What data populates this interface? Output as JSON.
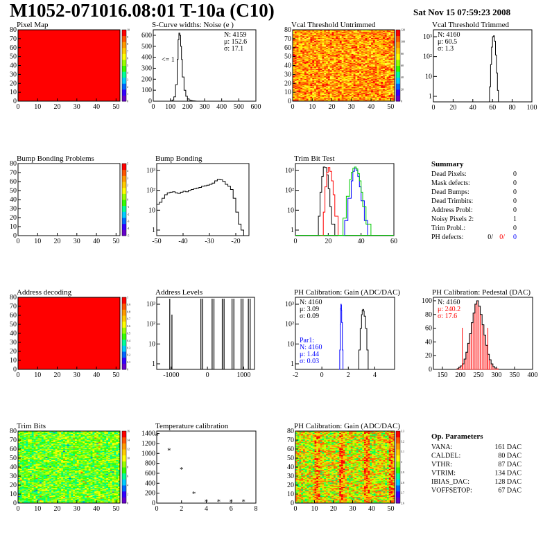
{
  "header": {
    "title": "M1052-071016.08:01 T-10a (C10)",
    "timestamp": "Sat Nov 15 07:59:23 2008"
  },
  "colors": {
    "red": "#ff0000",
    "blue": "#0000ff",
    "green": "#00cc00",
    "hist_fill_red": "#ff0000"
  },
  "chart_data": [
    {
      "id": "pixel-map",
      "type": "heatmap",
      "title": "Pixel Map",
      "x_ticks": [
        "0",
        "10",
        "20",
        "30",
        "40",
        "50"
      ],
      "y_ticks": [
        "0",
        "10",
        "20",
        "30",
        "40",
        "50",
        "60",
        "70",
        "80"
      ],
      "xlim": [
        0,
        52
      ],
      "ylim": [
        0,
        80
      ],
      "fill": "uniform red (all pixels at max)",
      "palette_ticks": [
        "0",
        "1",
        "2",
        "3",
        "4",
        "5",
        "6",
        "7",
        "8",
        "9",
        "10"
      ]
    },
    {
      "id": "scurve-noise",
      "type": "line",
      "title": "S-Curve widths: Noise (e )",
      "x_ticks": [
        "0",
        "100",
        "200",
        "300",
        "400",
        "500",
        "600"
      ],
      "y_ticks": [
        "0",
        "100",
        "200",
        "300",
        "400",
        "500",
        "600"
      ],
      "xlim": [
        0,
        600
      ],
      "ylim": [
        0,
        650
      ],
      "annotation": "<= 1",
      "stats": [
        "N: 4159",
        "μ: 152.6",
        "σ: 17.1"
      ],
      "x": [
        90,
        100,
        110,
        120,
        130,
        140,
        145,
        150,
        155,
        160,
        165,
        170,
        180,
        190,
        200,
        210,
        220,
        230,
        240,
        250
      ],
      "values": [
        0,
        2,
        10,
        40,
        150,
        380,
        560,
        620,
        600,
        500,
        380,
        220,
        100,
        45,
        20,
        10,
        5,
        3,
        1,
        0
      ]
    },
    {
      "id": "vcal-untrimmed",
      "type": "heatmap",
      "title": "Vcal Threshold Untrimmed",
      "x_ticks": [
        "0",
        "10",
        "20",
        "30",
        "40",
        "50"
      ],
      "y_ticks": [
        "0",
        "10",
        "20",
        "30",
        "40",
        "50",
        "60",
        "70",
        "80"
      ],
      "xlim": [
        0,
        52
      ],
      "ylim": [
        0,
        80
      ],
      "palette_ticks": [
        "0",
        "20",
        "40",
        "60",
        "80",
        "100",
        "120"
      ]
    },
    {
      "id": "vcal-trimmed",
      "type": "line",
      "title": "Vcal Threshold Trimmed",
      "x_ticks": [
        "0",
        "20",
        "40",
        "60",
        "80",
        "100"
      ],
      "y_ticks": [
        "1",
        "10",
        "10²",
        "10³"
      ],
      "y_scale": "log",
      "xlim": [
        0,
        100
      ],
      "stats": [
        "N: 4160",
        "μ: 60.5",
        "σ: 1.3"
      ],
      "x": [
        56,
        57,
        58,
        59,
        60,
        61,
        62,
        63,
        64,
        65,
        66
      ],
      "values": [
        0,
        3,
        40,
        300,
        1000,
        1100,
        600,
        120,
        15,
        2,
        0
      ]
    },
    {
      "id": "bump-bonding-problems",
      "type": "heatmap",
      "title": "Bump Bonding Problems",
      "x_ticks": [
        "0",
        "10",
        "20",
        "30",
        "40",
        "50"
      ],
      "y_ticks": [
        "0",
        "10",
        "20",
        "30",
        "40",
        "50",
        "60",
        "70",
        "80"
      ],
      "xlim": [
        0,
        52
      ],
      "ylim": [
        0,
        80
      ],
      "fill": "empty",
      "palette_ticks": [
        "-5",
        "-4",
        "-3",
        "-2",
        "-1",
        "0",
        "1",
        "2",
        "3",
        "4",
        "5"
      ]
    },
    {
      "id": "bump-bonding",
      "type": "line",
      "title": "Bump Bonding",
      "x_ticks": [
        "-50",
        "-40",
        "-30",
        "-20"
      ],
      "y_ticks": [
        "1",
        "10",
        "10²",
        "10³"
      ],
      "y_scale": "log",
      "xlim": [
        -50,
        -15
      ],
      "x": [
        -50,
        -49,
        -48,
        -47,
        -46,
        -45,
        -44,
        -43,
        -42,
        -41,
        -40,
        -39,
        -38,
        -37,
        -36,
        -35,
        -34,
        -33,
        -32,
        -31,
        -30,
        -29,
        -28,
        -27,
        -26,
        -25,
        -24,
        -23,
        -22,
        -21,
        -20,
        -19,
        -18,
        -17
      ],
      "values": [
        20,
        25,
        40,
        60,
        75,
        80,
        85,
        75,
        70,
        80,
        90,
        85,
        100,
        110,
        120,
        130,
        140,
        160,
        170,
        180,
        200,
        230,
        300,
        360,
        340,
        280,
        200,
        160,
        110,
        40,
        8,
        2,
        1,
        0
      ]
    },
    {
      "id": "trim-bit-test",
      "type": "line",
      "title": "Trim Bit Test",
      "x_ticks": [
        "0",
        "20",
        "40",
        "60"
      ],
      "y_ticks": [
        "1",
        "10",
        "10²",
        "10³"
      ],
      "y_scale": "log",
      "xlim": [
        0,
        60
      ],
      "series": [
        {
          "color": "black",
          "x": [
            12,
            14,
            15,
            16,
            17,
            18,
            19,
            20,
            21,
            22,
            24
          ],
          "values": [
            0,
            5,
            80,
            500,
            1500,
            1400,
            600,
            120,
            15,
            2,
            0
          ]
        },
        {
          "color": "red",
          "x": [
            15,
            17,
            18,
            19,
            20,
            21,
            22,
            23,
            24,
            26
          ],
          "values": [
            0,
            8,
            150,
            800,
            1400,
            900,
            300,
            60,
            5,
            0
          ]
        },
        {
          "color": "blue",
          "x": [
            28,
            30,
            32,
            34,
            35,
            36,
            37,
            38,
            39,
            40,
            42,
            44
          ],
          "values": [
            0,
            3,
            40,
            300,
            900,
            1300,
            1000,
            500,
            150,
            30,
            3,
            0
          ]
        },
        {
          "color": "green",
          "x": [
            26,
            29,
            31,
            33,
            34,
            35,
            36,
            37,
            38,
            39,
            40,
            41,
            43,
            46
          ],
          "values": [
            0,
            4,
            50,
            350,
            800,
            1300,
            1500,
            1200,
            700,
            300,
            80,
            15,
            2,
            0
          ]
        }
      ]
    },
    {
      "id": "address-decoding",
      "type": "heatmap",
      "title": "Address decoding",
      "x_ticks": [
        "0",
        "10",
        "20",
        "30",
        "40",
        "50"
      ],
      "y_ticks": [
        "0",
        "10",
        "20",
        "30",
        "40",
        "50",
        "60",
        "70",
        "80"
      ],
      "xlim": [
        0,
        52
      ],
      "ylim": [
        0,
        80
      ],
      "fill": "uniform red",
      "palette_ticks": [
        "0",
        "0.1",
        "0.2",
        "0.3",
        "0.4",
        "0.5",
        "0.6",
        "0.7",
        "0.8",
        "0.9",
        "1"
      ]
    },
    {
      "id": "address-levels",
      "type": "bar",
      "title": "Address Levels",
      "x_ticks": [
        "-1000",
        "0",
        "1000"
      ],
      "y_ticks": [
        "1",
        "10",
        "10²",
        "10³"
      ],
      "y_scale": "log",
      "xlim": [
        -1400,
        1300
      ],
      "x": [
        -1040,
        -980,
        -180,
        -130,
        130,
        180,
        410,
        460,
        680,
        730,
        930,
        980,
        1130,
        1180
      ],
      "values": [
        8000,
        300,
        9000,
        9000,
        9000,
        9000,
        9000,
        9000,
        9000,
        9000,
        9000,
        9000,
        9000,
        9000
      ]
    },
    {
      "id": "ph-gain",
      "type": "line",
      "title": "PH Calibration: Gain (ADC/DAC)",
      "x_ticks": [
        "-2",
        "0",
        "2",
        "4"
      ],
      "y_ticks": [
        "1",
        "10",
        "10²",
        "10³"
      ],
      "y_scale": "log",
      "xlim": [
        -2,
        5.5
      ],
      "stats": [
        "N: 4160",
        "μ: 3.09",
        "σ: 0.09"
      ],
      "stats_par1_label": "Par1:",
      "stats_par1": [
        "N: 4160",
        "μ: 1.44",
        "σ: 0.03"
      ],
      "series": [
        {
          "color": "black",
          "x": [
            2.7,
            2.8,
            2.9,
            3.0,
            3.05,
            3.1,
            3.15,
            3.2,
            3.3,
            3.4,
            3.5
          ],
          "values": [
            0,
            5,
            60,
            300,
            500,
            550,
            450,
            250,
            60,
            5,
            0
          ]
        },
        {
          "color": "blue",
          "x": [
            1.3,
            1.35,
            1.4,
            1.42,
            1.44,
            1.46,
            1.48,
            1.5,
            1.55,
            1.6
          ],
          "values": [
            0,
            5,
            100,
            600,
            1000,
            900,
            500,
            120,
            5,
            0
          ]
        }
      ]
    },
    {
      "id": "ph-pedestal",
      "type": "bar",
      "title": "PH Calibration: Pedestal (DAC)",
      "x_ticks": [
        "150",
        "200",
        "250",
        "300",
        "350",
        "400"
      ],
      "y_ticks": [
        "0",
        "20",
        "40",
        "60",
        "80",
        "100"
      ],
      "xlim": [
        125,
        400
      ],
      "ylim": [
        0,
        105
      ],
      "stats": [
        "N: 4160",
        "μ: 240.2",
        "σ: 17.6"
      ],
      "x": [
        190,
        195,
        200,
        205,
        210,
        215,
        220,
        225,
        230,
        235,
        240,
        245,
        250,
        255,
        260,
        265,
        270,
        275,
        280,
        285,
        290,
        295,
        300
      ],
      "values": [
        1,
        3,
        5,
        8,
        15,
        25,
        38,
        52,
        68,
        82,
        95,
        100,
        92,
        80,
        65,
        50,
        35,
        22,
        14,
        8,
        4,
        2,
        1
      ],
      "markers_x": [
        205,
        276
      ]
    },
    {
      "id": "trim-bits",
      "type": "heatmap",
      "title": "Trim Bits",
      "x_ticks": [
        "0",
        "10",
        "20",
        "30",
        "40",
        "50"
      ],
      "y_ticks": [
        "0",
        "10",
        "20",
        "30",
        "40",
        "50",
        "60",
        "70",
        "80"
      ],
      "xlim": [
        0,
        52
      ],
      "ylim": [
        0,
        80
      ],
      "palette_ticks": [
        "0",
        "2",
        "4",
        "6",
        "8",
        "10",
        "12",
        "14",
        "16"
      ]
    },
    {
      "id": "temperature-calibration",
      "type": "scatter",
      "title": "Temperature calibration",
      "x_ticks": [
        "0",
        "2",
        "4",
        "6",
        "8"
      ],
      "y_ticks": [
        "0",
        "200",
        "400",
        "600",
        "800",
        "1000",
        "1200",
        "1400"
      ],
      "xlim": [
        0,
        8
      ],
      "ylim": [
        0,
        1450
      ],
      "x": [
        0,
        1,
        2,
        3,
        4,
        5,
        6,
        7
      ],
      "values": [
        1370,
        1080,
        700,
        210,
        50,
        50,
        50,
        50
      ]
    },
    {
      "id": "ph-gain-map",
      "type": "heatmap",
      "title": "PH Calibration: Gain (ADC/DAC)",
      "x_ticks": [
        "0",
        "10",
        "20",
        "30",
        "40",
        "50"
      ],
      "y_ticks": [
        "0",
        "10",
        "20",
        "30",
        "40",
        "50",
        "60",
        "70",
        "80"
      ],
      "xlim": [
        0,
        52
      ],
      "ylim": [
        0,
        80
      ],
      "palette_ticks": [
        "2.6",
        "2.7",
        "2.8",
        "2.9",
        "3",
        "3.1",
        "3.2",
        "3.3"
      ]
    }
  ],
  "summary": {
    "title": "Summary",
    "rows": [
      {
        "label": "Dead Pixels:",
        "value": "0"
      },
      {
        "label": "Mask defects:",
        "value": "0"
      },
      {
        "label": "Dead Bumps:",
        "value": "0"
      },
      {
        "label": "Dead Trimbits:",
        "value": "0"
      },
      {
        "label": "Address Probl:",
        "value": "0"
      },
      {
        "label": "Noisy Pixels 2:",
        "value": "1"
      },
      {
        "label": "Trim Probl.:",
        "value": "0"
      }
    ],
    "ph_defects": {
      "label": "PH defects:",
      "v1": "0/",
      "v2": "0/",
      "v3": "0"
    }
  },
  "op_parameters": {
    "title": "Op. Parameters",
    "rows": [
      {
        "label": "VANA:",
        "value": "161 DAC"
      },
      {
        "label": "CALDEL:",
        "value": "80 DAC"
      },
      {
        "label": "VTHR:",
        "value": "87 DAC"
      },
      {
        "label": "VTRIM:",
        "value": "134 DAC"
      },
      {
        "label": "IBIAS_DAC:",
        "value": "128 DAC"
      },
      {
        "label": "VOFFSETOP:",
        "value": "67 DAC"
      }
    ]
  }
}
